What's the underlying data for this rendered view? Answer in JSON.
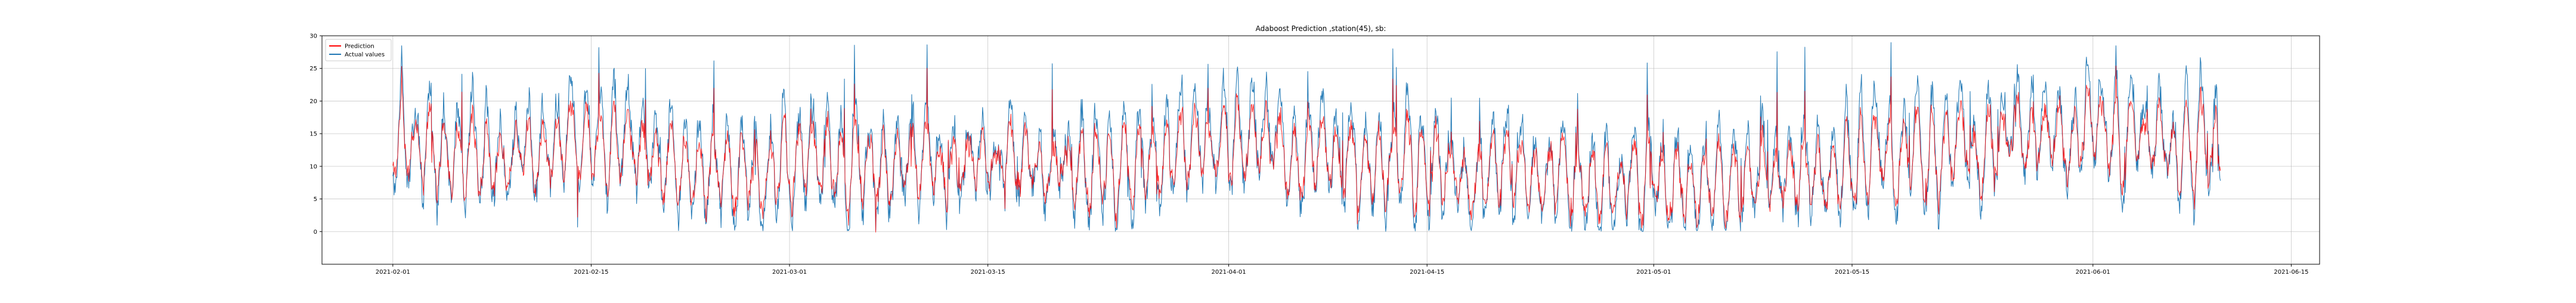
{
  "chart_data": {
    "type": "line",
    "title": "Adaboost Prediction ,station(45), sb:",
    "xlabel": "",
    "ylabel": "",
    "x_range": [
      "2021-01-27",
      "2021-06-17"
    ],
    "ylim": [
      -5,
      30
    ],
    "x_ticks": [
      "2021-02-01",
      "2021-02-15",
      "2021-03-01",
      "2021-03-15",
      "2021-04-01",
      "2021-04-15",
      "2021-05-01",
      "2021-05-15",
      "2021-06-01",
      "2021-06-15"
    ],
    "y_ticks": [
      0,
      5,
      10,
      15,
      20,
      25,
      30
    ],
    "grid": true,
    "legend_position": "upper-left",
    "series": [
      {
        "name": "Prediction",
        "color": "#ff0000",
        "x_start": "2021-02-01",
        "x_end": "2021-06-10",
        "interval_hours": 1,
        "value_range": [
          -2,
          26
        ],
        "typical_band": [
          5,
          18
        ],
        "anchor_values": [
          {
            "date": "2021-02-01",
            "value": 14
          },
          {
            "date": "2021-02-07",
            "value": 11
          },
          {
            "date": "2021-02-15",
            "value": 13
          },
          {
            "date": "2021-02-22",
            "value": 10
          },
          {
            "date": "2021-03-01",
            "value": 10
          },
          {
            "date": "2021-03-08",
            "value": 11
          },
          {
            "date": "2021-03-15",
            "value": 10
          },
          {
            "date": "2021-03-22",
            "value": 9
          },
          {
            "date": "2021-04-01",
            "value": 13
          },
          {
            "date": "2021-04-08",
            "value": 12
          },
          {
            "date": "2021-04-15",
            "value": 9
          },
          {
            "date": "2021-04-22",
            "value": 9
          },
          {
            "date": "2021-05-01",
            "value": 8
          },
          {
            "date": "2021-05-08",
            "value": 8
          },
          {
            "date": "2021-05-15",
            "value": 10
          },
          {
            "date": "2021-05-22",
            "value": 13
          },
          {
            "date": "2021-06-01",
            "value": 15
          },
          {
            "date": "2021-06-05",
            "value": 14
          },
          {
            "date": "2021-06-10",
            "value": 13
          }
        ]
      },
      {
        "name": "Actual values",
        "color": "#1f77b4",
        "x_start": "2021-02-01",
        "x_end": "2021-06-10",
        "interval_hours": 1,
        "value_range": [
          0,
          29
        ],
        "typical_band": [
          1,
          25
        ],
        "anchor_values": [
          {
            "date": "2021-02-01",
            "value": 14
          },
          {
            "date": "2021-02-07",
            "value": 12
          },
          {
            "date": "2021-02-15",
            "value": 14
          },
          {
            "date": "2021-02-22",
            "value": 11
          },
          {
            "date": "2021-03-01",
            "value": 10
          },
          {
            "date": "2021-03-08",
            "value": 12
          },
          {
            "date": "2021-03-15",
            "value": 10
          },
          {
            "date": "2021-03-22",
            "value": 9
          },
          {
            "date": "2021-04-01",
            "value": 14
          },
          {
            "date": "2021-04-08",
            "value": 13
          },
          {
            "date": "2021-04-15",
            "value": 9
          },
          {
            "date": "2021-04-22",
            "value": 9
          },
          {
            "date": "2021-05-01",
            "value": 8
          },
          {
            "date": "2021-05-08",
            "value": 9
          },
          {
            "date": "2021-05-15",
            "value": 11
          },
          {
            "date": "2021-05-22",
            "value": 14
          },
          {
            "date": "2021-06-01",
            "value": 16
          },
          {
            "date": "2021-06-05",
            "value": 15
          },
          {
            "date": "2021-06-10",
            "value": 14
          }
        ]
      }
    ]
  }
}
